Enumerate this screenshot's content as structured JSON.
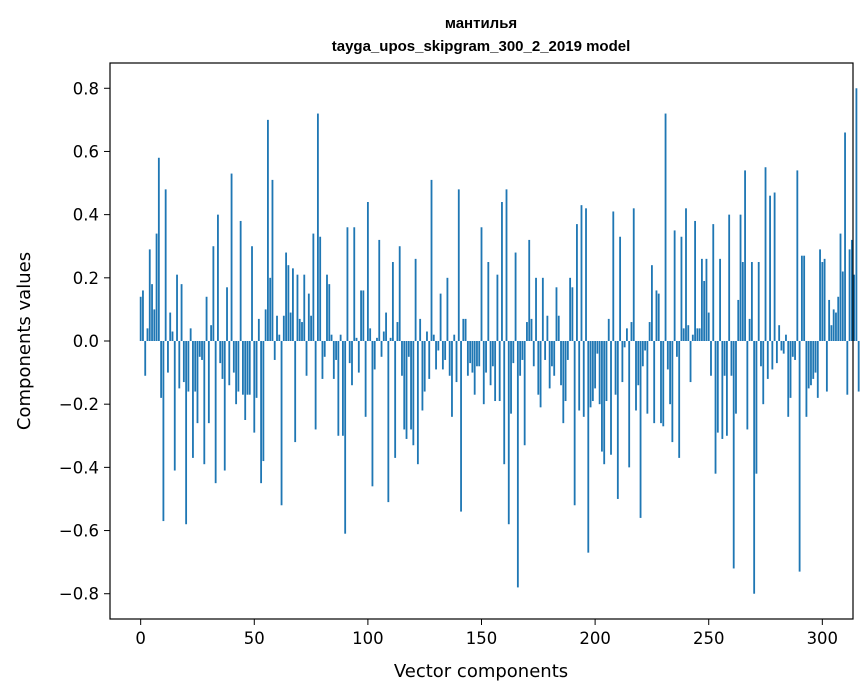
{
  "chart_data": {
    "type": "bar",
    "title": "мантилья",
    "subtitle": "tayga_upos_skipgram_300_2_2019 model",
    "xlabel": "Vector components",
    "ylabel": "Components values",
    "xlim": [
      -13.5,
      313.5
    ],
    "ylim": [
      -0.88,
      0.88
    ],
    "xticks": [
      0,
      50,
      100,
      150,
      200,
      250,
      300
    ],
    "xtick_labels": [
      "0",
      "50",
      "100",
      "150",
      "200",
      "250",
      "300"
    ],
    "yticks": [
      -0.8,
      -0.6,
      -0.4,
      -0.2,
      0.0,
      0.2,
      0.4,
      0.6,
      0.8
    ],
    "ytick_labels": [
      "−0.8",
      "−0.6",
      "−0.4",
      "−0.2",
      "0.0",
      "0.2",
      "0.4",
      "0.6",
      "0.8"
    ],
    "bar_color": "#1f77b4",
    "grid": false,
    "values": [
      0.14,
      0.16,
      -0.11,
      0.04,
      0.29,
      0.18,
      0.1,
      0.34,
      0.58,
      -0.18,
      -0.57,
      0.48,
      -0.1,
      0.09,
      0.03,
      -0.41,
      0.21,
      -0.15,
      0.18,
      -0.13,
      -0.58,
      -0.16,
      0.04,
      -0.37,
      -0.16,
      -0.26,
      -0.05,
      -0.06,
      -0.39,
      0.14,
      -0.26,
      0.05,
      0.3,
      -0.45,
      0.4,
      -0.07,
      -0.12,
      -0.41,
      0.17,
      -0.14,
      0.53,
      -0.1,
      -0.2,
      -0.16,
      0.38,
      -0.17,
      -0.25,
      -0.17,
      -0.17,
      0.3,
      -0.29,
      -0.18,
      0.07,
      -0.45,
      -0.38,
      0.1,
      0.7,
      0.2,
      0.51,
      -0.06,
      0.08,
      0.02,
      -0.52,
      0.08,
      0.28,
      0.24,
      0.09,
      0.23,
      -0.32,
      0.21,
      0.07,
      0.06,
      0.21,
      -0.11,
      0.15,
      0.08,
      0.34,
      -0.28,
      0.72,
      0.33,
      -0.12,
      -0.05,
      0.21,
      0.18,
      0.02,
      -0.12,
      -0.06,
      -0.3,
      0.02,
      -0.3,
      -0.61,
      0.36,
      -0.07,
      -0.14,
      0.36,
      0.01,
      -0.1,
      0.16,
      0.16,
      -0.24,
      0.44,
      0.04,
      -0.46,
      -0.09,
      0.01,
      0.32,
      -0.05,
      0.03,
      0.09,
      -0.51,
      0.01,
      0.25,
      -0.37,
      0.06,
      0.3,
      -0.11,
      -0.28,
      -0.31,
      -0.05,
      -0.28,
      -0.33,
      0.26,
      -0.39,
      0.07,
      -0.22,
      -0.16,
      0.03,
      -0.12,
      0.51,
      0.02,
      -0.09,
      -0.03,
      0.15,
      -0.09,
      -0.06,
      0.2,
      -0.11,
      -0.24,
      0.02,
      -0.13,
      0.48,
      -0.54,
      0.07,
      0.07,
      -0.11,
      -0.07,
      -0.1,
      -0.17,
      -0.08,
      -0.08,
      0.36,
      -0.2,
      -0.1,
      0.25,
      -0.14,
      -0.08,
      -0.19,
      0.21,
      -0.19,
      0.44,
      -0.39,
      0.48,
      -0.58,
      -0.23,
      -0.07,
      0.28,
      -0.78,
      -0.11,
      -0.06,
      -0.33,
      0.06,
      0.32,
      0.07,
      -0.08,
      0.2,
      -0.17,
      -0.21,
      0.2,
      -0.06,
      0.08,
      -0.15,
      -0.08,
      -0.11,
      0.17,
      0.08,
      -0.14,
      -0.26,
      -0.19,
      -0.06,
      0.2,
      0.17,
      -0.52,
      0.37,
      -0.22,
      0.43,
      -0.24,
      0.42,
      -0.67,
      -0.21,
      -0.19,
      -0.15,
      -0.04,
      -0.2,
      -0.35,
      -0.39,
      -0.19,
      0.07,
      -0.36,
      0.41,
      -0.17,
      -0.5,
      0.33,
      -0.13,
      -0.02,
      0.04,
      -0.4,
      0.06,
      0.42,
      -0.22,
      -0.14,
      -0.56,
      -0.08,
      -0.03,
      -0.23,
      0.06,
      0.24,
      -0.26,
      0.16,
      0.15,
      -0.26,
      -0.27,
      0.72,
      -0.09,
      -0.2,
      -0.32,
      0.35,
      -0.05,
      -0.37,
      0.33,
      0.04,
      0.42,
      0.05,
      -0.13,
      0.02,
      0.38,
      0.04,
      0.04,
      0.26,
      0.19,
      0.26,
      0.09,
      -0.11,
      0.37,
      -0.42,
      -0.29,
      0.26,
      -0.31,
      -0.11,
      -0.3,
      0.4,
      -0.11,
      -0.72,
      -0.23,
      0.13,
      0.4,
      0.25,
      0.54,
      -0.28,
      0.07,
      0.25,
      -0.8,
      -0.42,
      0.25,
      -0.08,
      -0.2,
      0.55,
      -0.12,
      0.46,
      -0.09,
      0.47,
      -0.07,
      0.05,
      -0.03,
      -0.04,
      0.02,
      -0.24,
      -0.18,
      -0.05,
      -0.06,
      0.54,
      -0.73,
      0.27,
      0.27,
      -0.24,
      -0.15,
      -0.14,
      -0.12,
      -0.1,
      -0.18,
      0.29,
      0.25,
      0.26,
      -0.16,
      0.13,
      0.05,
      0.1,
      0.09,
      0.14,
      0.34,
      0.22,
      0.66,
      -0.17,
      0.29,
      0.32,
      0.21,
      0.8,
      -0.16
    ]
  }
}
